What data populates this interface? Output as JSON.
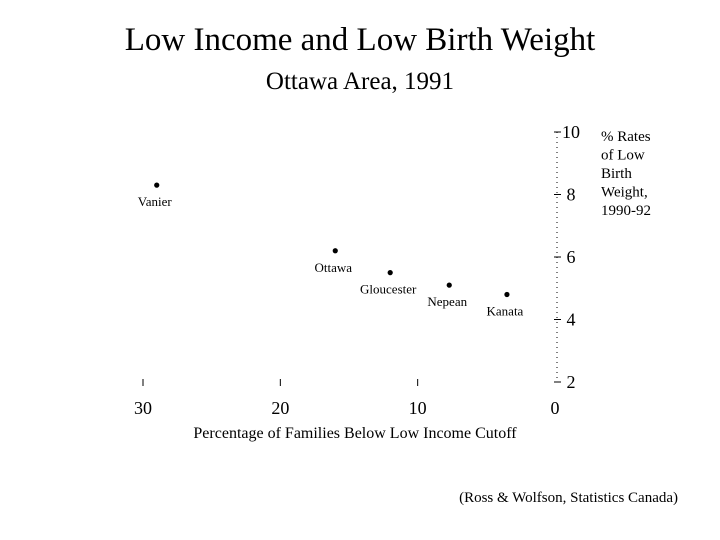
{
  "page": {
    "title": "Low Income and Low Birth Weight",
    "subtitle": "Ottawa Area, 1991",
    "source": "(Ross & Wolfson, Statistics Canada)"
  },
  "chart_data": {
    "type": "scatter",
    "title": "Low Income and Low Birth Weight",
    "subtitle": "Ottawa Area, 1991",
    "xlabel": "Percentage of Families Below Low Income Cutoff",
    "ylabel_lines": [
      "% Rates",
      "of Low",
      "Birth",
      "Weight,",
      "1990-92"
    ],
    "x_reversed": true,
    "xlim": [
      0,
      30
    ],
    "ylim": [
      2,
      10
    ],
    "x_ticks": [
      30,
      20,
      10,
      0
    ],
    "y_ticks": [
      10,
      8,
      6,
      4,
      2
    ],
    "y_axis_position": "right",
    "grid": false,
    "legend": "none",
    "colors": {
      "points": "#000000",
      "text": "#000000"
    },
    "points": [
      {
        "label": "Vanier",
        "x": 29.0,
        "y": 8.3
      },
      {
        "label": "Ottawa",
        "x": 16.0,
        "y": 6.2
      },
      {
        "label": "Gloucester",
        "x": 12.0,
        "y": 5.5
      },
      {
        "label": "Nepean",
        "x": 7.7,
        "y": 5.1
      },
      {
        "label": "Kanata",
        "x": 3.5,
        "y": 4.8
      }
    ]
  }
}
